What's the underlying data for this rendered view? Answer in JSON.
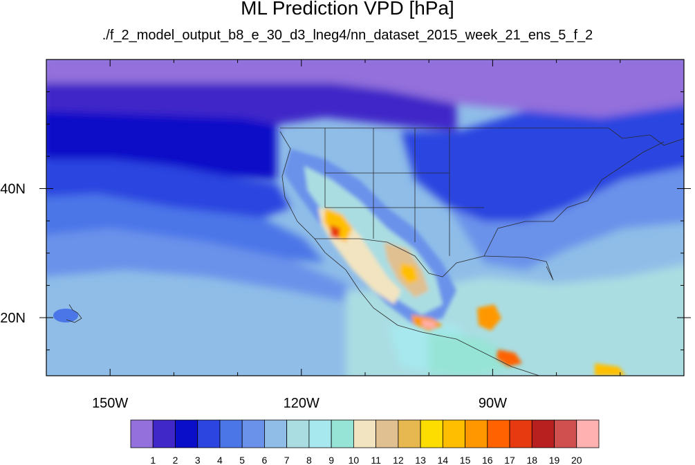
{
  "title": "ML Prediction VPD [hPa]",
  "subtitle": "./f_2_model_output_b8_e_30_d3_lneg4/nn_dataset_2015_week_21_ens_5_f_2",
  "chart_data": {
    "type": "heatmap",
    "map_projection": "cylindrical equidistant",
    "region": "North America and eastern Pacific",
    "lon_range": [
      -160,
      -60
    ],
    "lat_range": [
      11,
      60
    ],
    "x_ticks": [
      {
        "lon": -150,
        "label": "150W"
      },
      {
        "lon": -120,
        "label": "120W"
      },
      {
        "lon": -90,
        "label": "90W"
      }
    ],
    "y_ticks": [
      {
        "lat": 40,
        "label": "40N"
      },
      {
        "lat": 20,
        "label": "20N"
      }
    ],
    "colorbar": {
      "orientation": "horizontal",
      "levels": [
        1,
        2,
        3,
        4,
        5,
        6,
        7,
        8,
        9,
        10,
        11,
        12,
        13,
        14,
        15,
        16,
        17,
        18,
        19,
        20
      ],
      "colors": [
        "#9370db",
        "#4028c8",
        "#0a0ec8",
        "#2c45e0",
        "#4b76e8",
        "#6b92ea",
        "#8fbde8",
        "#aadde2",
        "#a6e8ee",
        "#96e4d6",
        "#f2e4c0",
        "#e0c090",
        "#e8b850",
        "#fddc00",
        "#ffbf00",
        "#ff9800",
        "#ff6200",
        "#e83a10",
        "#b82020",
        "#d05050",
        "#ffb0b0"
      ]
    }
  }
}
